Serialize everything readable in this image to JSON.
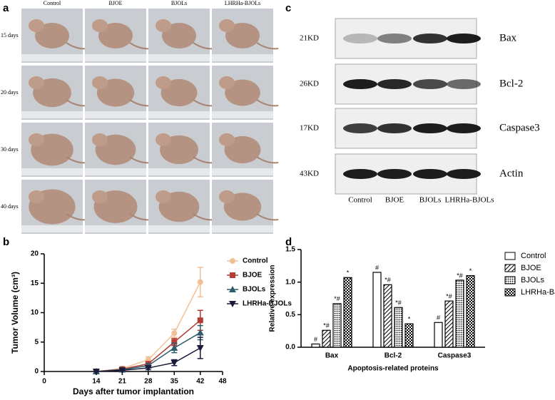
{
  "panel_a": {
    "label": "a",
    "columns": [
      "Control",
      "BJOE",
      "BJOLs",
      "LHRHa-BJOLs"
    ],
    "rows": [
      "15 days",
      "20 days",
      "30 days",
      "40 days"
    ]
  },
  "panel_c": {
    "label": "c",
    "sizes": [
      "21KD",
      "26KD",
      "17KD",
      "43KD"
    ],
    "proteins": [
      "Bax",
      "Bcl-2",
      "Caspase3",
      "Actin"
    ],
    "lanes": [
      "Control",
      "BJOE",
      "BJOLs",
      "LHRHa-BJOLs"
    ]
  },
  "chart_data": [
    {
      "label": "b",
      "type": "line",
      "y_label": "Tumor Volume (cm³)",
      "x_label": "Days after tumor implantation",
      "x": [
        14,
        21,
        28,
        35,
        42
      ],
      "xlim": [
        0,
        48
      ],
      "xticks": [
        0,
        14,
        21,
        28,
        35,
        42,
        48
      ],
      "ylim": [
        0,
        20
      ],
      "yticks": [
        0,
        5,
        10,
        15,
        20
      ],
      "series": [
        {
          "name": "Control",
          "color": "#f2c096",
          "marker": "circle",
          "values": [
            0,
            0.5,
            2,
            6.5,
            15.2
          ],
          "errors": [
            0,
            0.2,
            0.5,
            0.7,
            2.5
          ]
        },
        {
          "name": "BJOE",
          "color": "#b23c36",
          "marker": "square",
          "values": [
            0,
            0.4,
            1.3,
            5,
            8.7
          ],
          "errors": [
            0,
            0.2,
            0.3,
            0.6,
            1.7
          ]
        },
        {
          "name": "BJOLs",
          "color": "#2d5d6c",
          "marker": "triangle",
          "values": [
            0,
            0.3,
            1,
            4,
            6.6
          ],
          "errors": [
            0,
            0.1,
            0.3,
            0.8,
            1.2
          ]
        },
        {
          "name": "LHRHa-BJOLs",
          "color": "#1a1a3a",
          "marker": "triangle-down",
          "values": [
            0,
            0.2,
            0.6,
            1.5,
            4
          ],
          "errors": [
            0,
            0.1,
            0.3,
            0.5,
            1.8
          ]
        }
      ]
    },
    {
      "label": "d",
      "type": "bar",
      "y_label": "Relative expression",
      "x_label": "Apoptosis-related proteins",
      "categories": [
        "Bax",
        "Bcl-2",
        "Caspase3"
      ],
      "ylim": [
        0,
        1.5
      ],
      "yticks": [
        {
          "value": 0,
          "label": "0.0"
        },
        {
          "value": 0.5,
          "label": "0.5"
        },
        {
          "value": 1,
          "label": "1.0"
        },
        {
          "value": 1.5,
          "label": "1.5"
        }
      ],
      "series": [
        {
          "name": "Control",
          "color": "#000000",
          "pattern": "none",
          "values": [
            0.05,
            1.15,
            0.38
          ],
          "annotations": [
            "#",
            "#",
            "#"
          ]
        },
        {
          "name": "BJOE",
          "color": "#000000",
          "pattern": "hatch",
          "values": [
            0.26,
            0.96,
            0.71
          ],
          "annotations": [
            "*#",
            "*#",
            "*#"
          ]
        },
        {
          "name": "BJOLs",
          "color": "#000000",
          "pattern": "dots",
          "values": [
            0.67,
            0.61,
            1.03
          ],
          "annotations": [
            "*#",
            "*#",
            "*#"
          ]
        },
        {
          "name": "LHRHa-BJOLs",
          "color": "#000000",
          "pattern": "checker",
          "values": [
            1.07,
            0.36,
            1.1
          ],
          "annotations": [
            "*",
            "*",
            "*"
          ]
        }
      ]
    }
  ]
}
